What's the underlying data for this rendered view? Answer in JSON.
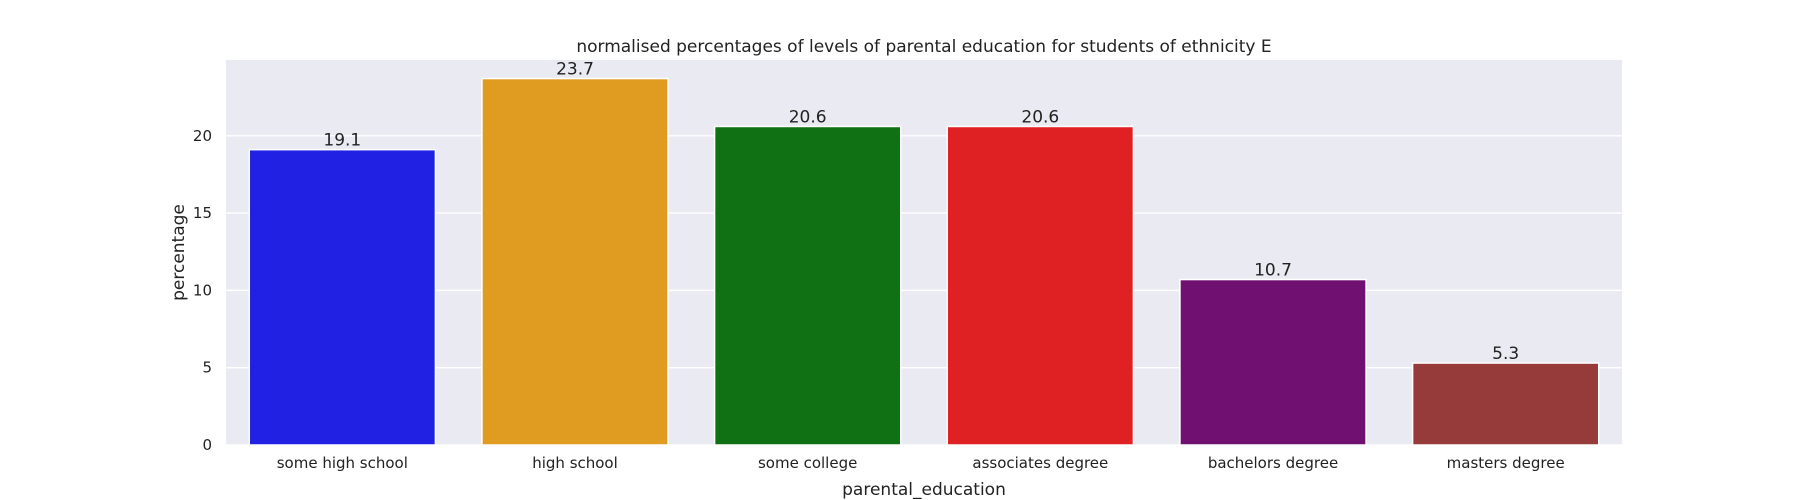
{
  "chart_data": {
    "type": "bar",
    "title": "normalised percentages of levels of parental education for students of ethnicity E",
    "xlabel": "parental_education",
    "ylabel": "percentage",
    "categories": [
      "some high school",
      "high school",
      "some college",
      "associates degree",
      "bachelors degree",
      "masters degree"
    ],
    "values": [
      19.1,
      23.7,
      20.6,
      20.6,
      10.7,
      5.3
    ],
    "data_labels": [
      "19.1",
      "23.7",
      "20.6",
      "20.6",
      "10.7",
      "5.3"
    ],
    "colors": [
      "#2121e3",
      "#e09c21",
      "#0f7014",
      "#e02124",
      "#701070",
      "#963b3a"
    ],
    "yticks": [
      0,
      5,
      10,
      15,
      20
    ],
    "ylim": [
      0,
      24.9
    ],
    "grid": true,
    "background": "#eaeaf2",
    "legend": "none"
  }
}
